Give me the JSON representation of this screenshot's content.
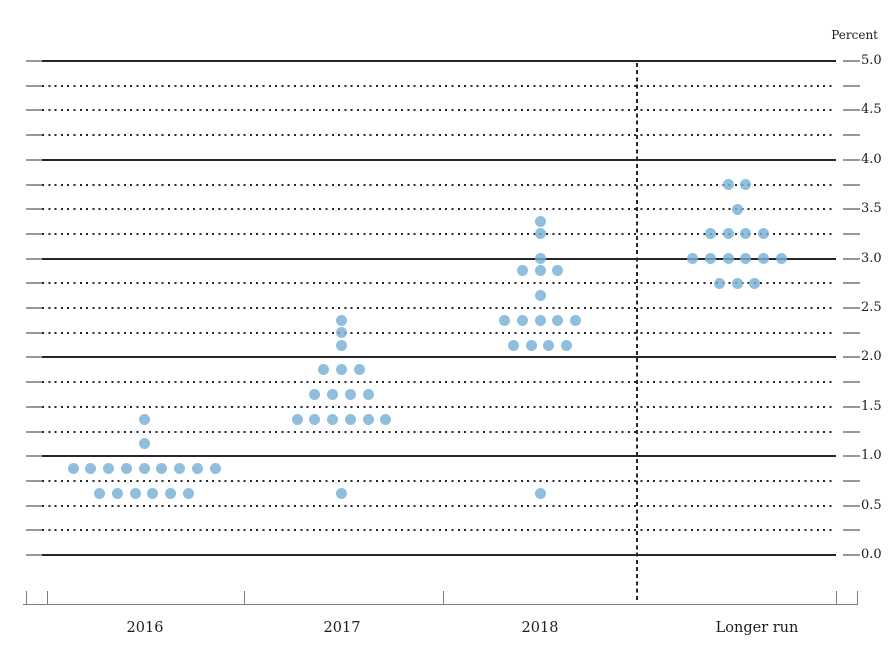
{
  "chart": {
    "axis_title": "Percent",
    "y_labels": [
      "5.0",
      "4.5",
      "4.0",
      "3.5",
      "3.0",
      "2.5",
      "2.0",
      "1.5",
      "1.0",
      "0.5",
      "0.0"
    ],
    "colors": {
      "dot": "#77b0d6",
      "dot_opacity": 0.82,
      "gridline": "#26262e",
      "stub": "#97979e",
      "axis": "#7c7c84",
      "text": "#1c1c24"
    }
  },
  "chart_data": {
    "type": "scatter",
    "subtype": "fomc-dot-plot",
    "ylabel": "Percent",
    "ylim": [
      0.0,
      5.0
    ],
    "gridline_step": 0.25,
    "label_step": 0.5,
    "grid": "solid-at-integers-dotted-at-quarters",
    "legend": "none",
    "categories": [
      "2016",
      "2017",
      "2018",
      "Longer run"
    ],
    "series": [
      {
        "name": "2016",
        "dots": [
          {
            "value": 1.375,
            "count": 1
          },
          {
            "value": 1.125,
            "count": 1
          },
          {
            "value": 0.875,
            "count": 9
          },
          {
            "value": 0.625,
            "count": 6
          }
        ]
      },
      {
        "name": "2017",
        "dots": [
          {
            "value": 2.375,
            "count": 1
          },
          {
            "value": 2.25,
            "count": 1
          },
          {
            "value": 2.125,
            "count": 1
          },
          {
            "value": 1.875,
            "count": 3
          },
          {
            "value": 1.625,
            "count": 4
          },
          {
            "value": 1.375,
            "count": 6
          },
          {
            "value": 0.625,
            "count": 1
          }
        ]
      },
      {
        "name": "2018",
        "dots": [
          {
            "value": 3.375,
            "count": 1
          },
          {
            "value": 3.25,
            "count": 1
          },
          {
            "value": 3.0,
            "count": 1
          },
          {
            "value": 2.875,
            "count": 3
          },
          {
            "value": 2.625,
            "count": 1
          },
          {
            "value": 2.375,
            "count": 5
          },
          {
            "value": 2.125,
            "count": 4
          },
          {
            "value": 0.625,
            "count": 1
          }
        ]
      },
      {
        "name": "Longer run",
        "dots": [
          {
            "value": 3.75,
            "count": 2
          },
          {
            "value": 3.5,
            "count": 1
          },
          {
            "value": 3.25,
            "count": 4
          },
          {
            "value": 3.0,
            "count": 6
          },
          {
            "value": 2.75,
            "count": 3
          }
        ]
      }
    ]
  }
}
